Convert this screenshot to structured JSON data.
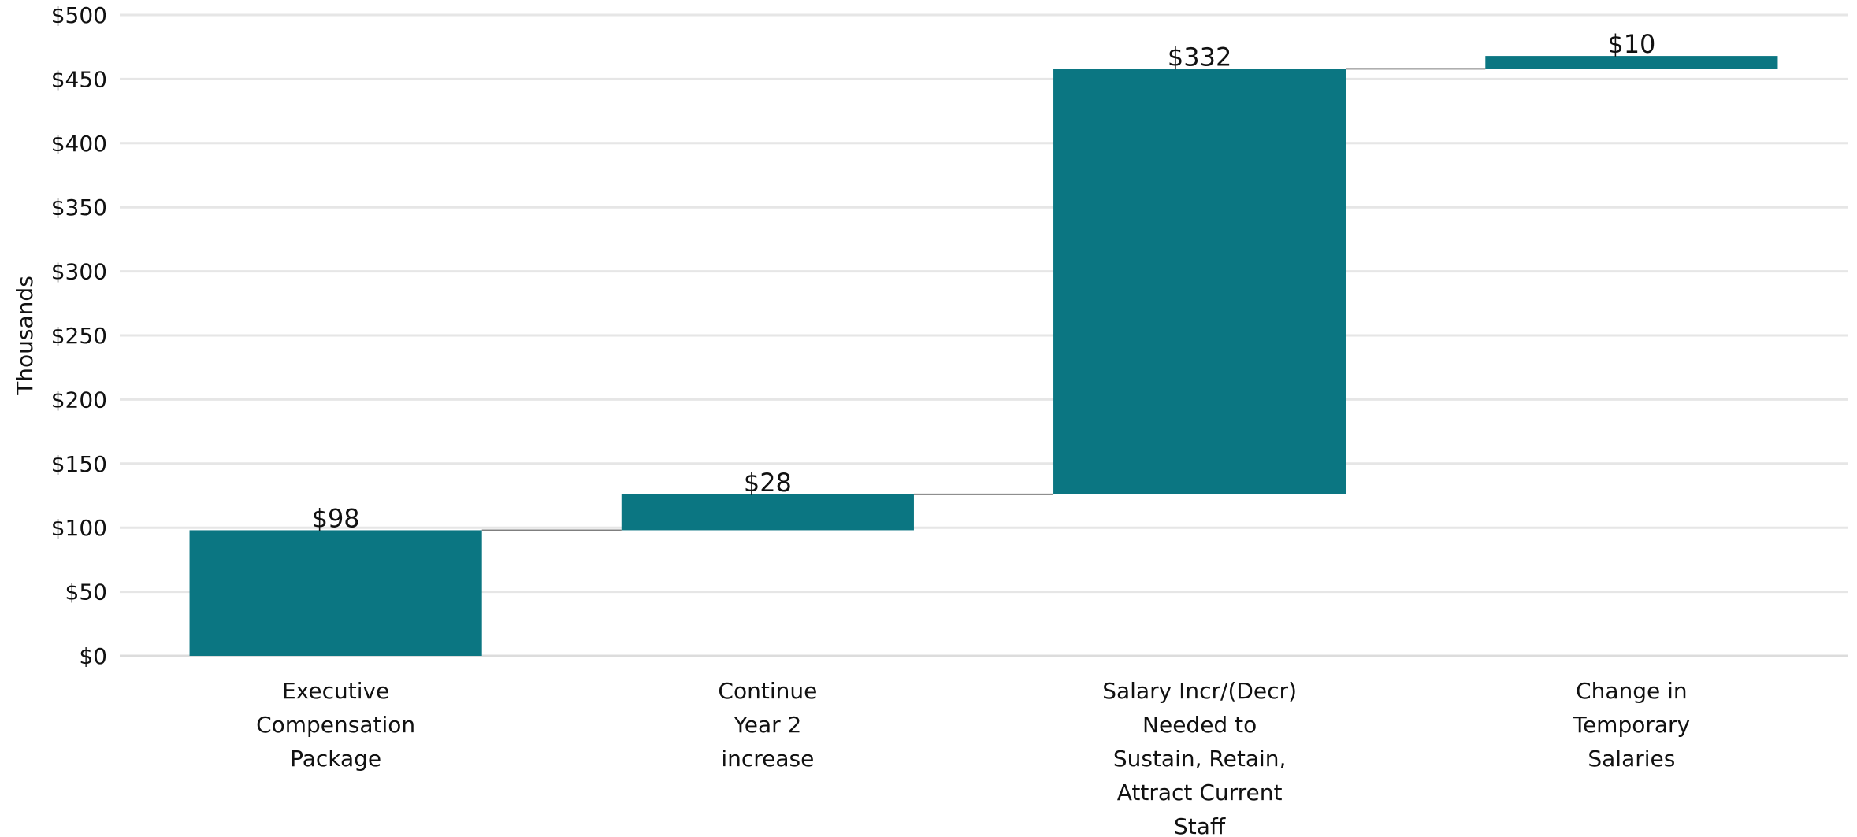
{
  "chart_data": {
    "type": "waterfall",
    "title": "",
    "xlabel": "",
    "ylabel": "Thousands",
    "ylim": [
      0,
      500
    ],
    "y_ticks": [
      0,
      50,
      100,
      150,
      200,
      250,
      300,
      350,
      400,
      450,
      500
    ],
    "y_tick_labels": [
      "$0",
      "$50",
      "$100",
      "$150",
      "$200",
      "$250",
      "$300",
      "$350",
      "$400",
      "$450",
      "$500"
    ],
    "categories": [
      [
        "Executive",
        "Compensation",
        "Package"
      ],
      [
        "Continue",
        "Year 2",
        "increase"
      ],
      [
        "Salary Incr/(Decr)",
        "Needed to",
        "Sustain, Retain,",
        "Attract Current",
        "Staff"
      ],
      [
        "Change in",
        "Temporary",
        "Salaries"
      ]
    ],
    "values": [
      98,
      28,
      332,
      10
    ],
    "value_labels": [
      "$98",
      "$28",
      "$332",
      "$10"
    ],
    "bar_color": "#0b7682",
    "grid": true,
    "connectors": true,
    "legend": "none"
  }
}
